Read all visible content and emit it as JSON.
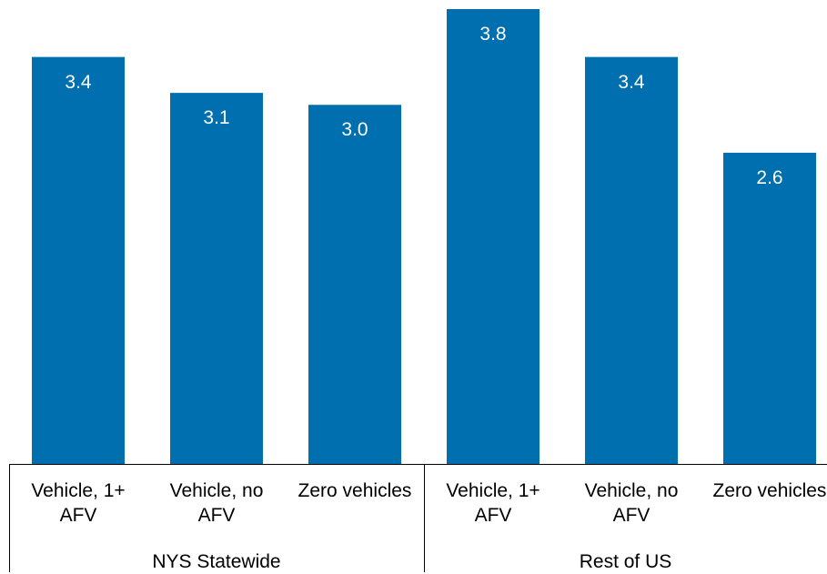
{
  "chart_data": {
    "type": "bar",
    "color": "#006fb0",
    "groups": [
      {
        "name": "NYS Statewide",
        "categories": [
          "Vehicle, 1+ AFV",
          "Vehicle, no AFV",
          "Zero vehicles"
        ],
        "values": [
          3.4,
          3.1,
          3.0
        ],
        "value_labels": [
          "3.4",
          "3.1",
          "3.0"
        ]
      },
      {
        "name": "Rest of US",
        "categories": [
          "Vehicle, 1+ AFV",
          "Vehicle, no AFV",
          "Zero vehicles"
        ],
        "values": [
          3.8,
          3.4,
          2.6
        ],
        "value_labels": [
          "3.8",
          "3.4",
          "2.6"
        ]
      }
    ]
  }
}
